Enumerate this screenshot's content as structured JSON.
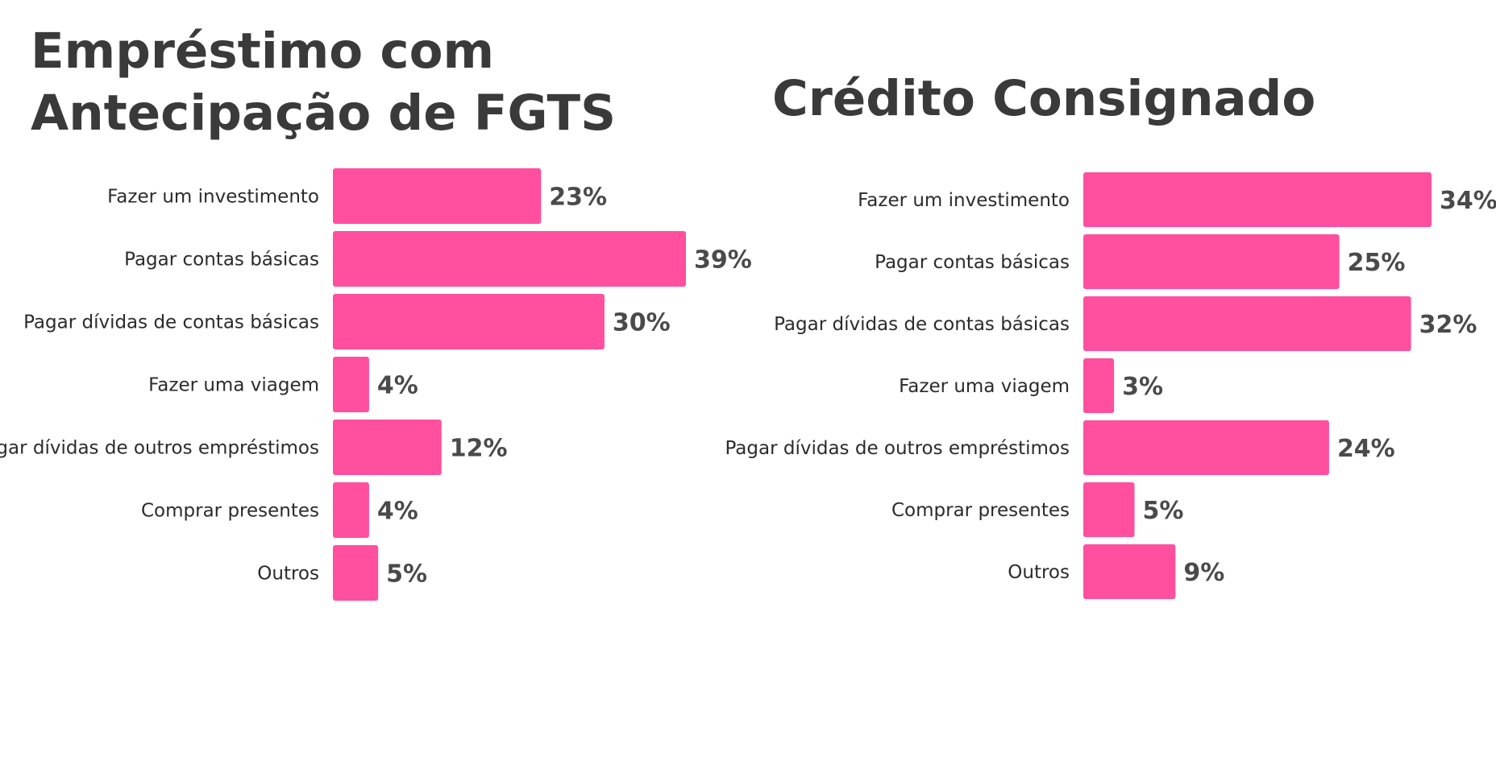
{
  "chart_data": [
    {
      "type": "bar",
      "orientation": "horizontal",
      "title": "Empréstimo com Antecipação de FGTS",
      "categories": [
        "Fazer um investimento",
        "Pagar contas básicas",
        "Pagar dívidas de contas básicas",
        "Fazer uma viagem",
        "Pagar dívidas de outros empréstimos",
        "Comprar presentes",
        "Outros"
      ],
      "values": [
        23,
        39,
        30,
        4,
        12,
        4,
        5
      ],
      "value_labels": [
        "23%",
        "39%",
        "30%",
        "4%",
        "12%",
        "4%",
        "5%"
      ],
      "unit": "%",
      "xlim": [
        0,
        39
      ],
      "grid": false,
      "legend": "none",
      "bar_color": "#ff4f9e"
    },
    {
      "type": "bar",
      "orientation": "horizontal",
      "title": "Crédito Consignado",
      "categories": [
        "Fazer um investimento",
        "Pagar contas básicas",
        "Pagar dívidas de contas básicas",
        "Fazer uma viagem",
        "Pagar dívidas de outros empréstimos",
        "Comprar presentes",
        "Outros"
      ],
      "values": [
        34,
        25,
        32,
        3,
        24,
        5,
        9
      ],
      "value_labels": [
        "34%",
        "25%",
        "32%",
        "3%",
        "24%",
        "5%",
        "9%"
      ],
      "unit": "%",
      "xlim": [
        0,
        34
      ],
      "grid": false,
      "legend": "none",
      "bar_color": "#ff4f9e"
    }
  ]
}
